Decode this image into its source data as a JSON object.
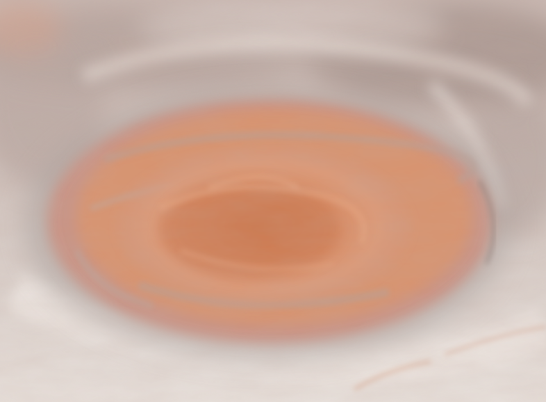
{
  "image": {
    "subject": "",
    "palette": {
      "background_haze": "#d8cfca",
      "upper_cloud_band": "#b9aaa5",
      "upper_right_dark": "#a99791",
      "outer_ring": "#c78e7a",
      "mid_ring": "#d8936e",
      "inner_core": "#d98a61",
      "core_darker": "#c9774f",
      "highlight_pale": "#efe7e2",
      "lower_band": "#e5ddd8",
      "shadow_gray": "#a8a09d",
      "streak_orange": "#d9a78d"
    }
  }
}
